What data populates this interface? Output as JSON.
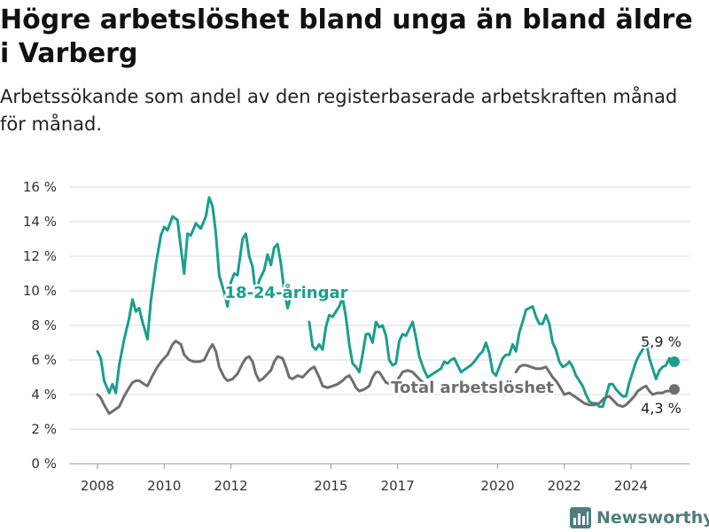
{
  "header": {
    "title": "Högre arbetslöshet bland unga än bland äldre i Varberg",
    "subtitle": "Arbetssökande som andel av den registerbaserade arbetskraften månad för månad."
  },
  "brand": {
    "name": "Newsworthy",
    "icon": "bar-chart-logo-icon"
  },
  "colors": {
    "youth": "#1a9e8f",
    "total": "#6e6e72",
    "grid": "#d9d9d9",
    "text": "#333333"
  },
  "chart_data": {
    "type": "line",
    "x_unit": "year",
    "y_unit": "%",
    "ylim": [
      0,
      16
    ],
    "xlim": [
      2007.5,
      2025.5
    ],
    "y_ticks": [
      0,
      2,
      4,
      6,
      8,
      10,
      12,
      14,
      16
    ],
    "y_tick_labels": [
      "0 %",
      "2 %",
      "4 %",
      "6 %",
      "8 %",
      "10 %",
      "12 %",
      "14 %",
      "16 %"
    ],
    "x_ticks": [
      2008,
      2010,
      2012,
      2015,
      2017,
      2020,
      2022,
      2024
    ],
    "x_tick_labels": [
      "2008",
      "2010",
      "2012",
      "2015",
      "2017",
      "2020",
      "2022",
      "2024"
    ],
    "grid": "horizontal",
    "series": [
      {
        "name": "18-24-åringar",
        "color": "#1a9e8f",
        "end_label": "5,9 %",
        "points": [
          [
            2008.0,
            6.5
          ],
          [
            2008.1,
            6.1
          ],
          [
            2008.2,
            4.8
          ],
          [
            2008.35,
            4.1
          ],
          [
            2008.45,
            4.6
          ],
          [
            2008.55,
            4.1
          ],
          [
            2008.65,
            5.7
          ],
          [
            2008.8,
            7.2
          ],
          [
            2008.95,
            8.4
          ],
          [
            2009.05,
            9.5
          ],
          [
            2009.15,
            8.8
          ],
          [
            2009.25,
            9.0
          ],
          [
            2009.35,
            8.2
          ],
          [
            2009.5,
            7.2
          ],
          [
            2009.6,
            9.4
          ],
          [
            2009.75,
            11.5
          ],
          [
            2009.9,
            13.2
          ],
          [
            2010.0,
            13.7
          ],
          [
            2010.1,
            13.5
          ],
          [
            2010.25,
            14.3
          ],
          [
            2010.4,
            14.1
          ],
          [
            2010.5,
            12.5
          ],
          [
            2010.6,
            11.0
          ],
          [
            2010.7,
            13.3
          ],
          [
            2010.8,
            13.2
          ],
          [
            2010.95,
            13.9
          ],
          [
            2011.1,
            13.6
          ],
          [
            2011.25,
            14.3
          ],
          [
            2011.35,
            15.4
          ],
          [
            2011.45,
            14.9
          ],
          [
            2011.55,
            13.3
          ],
          [
            2011.65,
            10.9
          ],
          [
            2011.8,
            9.9
          ],
          [
            2011.9,
            9.1
          ],
          [
            2012.0,
            10.5
          ],
          [
            2012.1,
            11.0
          ],
          [
            2012.2,
            10.9
          ],
          [
            2012.35,
            13.0
          ],
          [
            2012.45,
            13.3
          ],
          [
            2012.55,
            12.0
          ],
          [
            2012.65,
            11.4
          ],
          [
            2012.75,
            9.7
          ],
          [
            2012.85,
            10.6
          ],
          [
            2013.0,
            11.2
          ],
          [
            2013.1,
            12.1
          ],
          [
            2013.2,
            11.5
          ],
          [
            2013.3,
            12.5
          ],
          [
            2013.4,
            12.7
          ],
          [
            2013.5,
            11.6
          ],
          [
            2013.6,
            10.0
          ],
          [
            2013.7,
            9.0
          ],
          [
            2013.8,
            9.7
          ],
          [
            2014.35,
            8.2
          ],
          [
            2014.45,
            6.8
          ],
          [
            2014.55,
            6.6
          ],
          [
            2014.65,
            6.9
          ],
          [
            2014.75,
            6.6
          ],
          [
            2014.85,
            7.9
          ],
          [
            2014.95,
            8.6
          ],
          [
            2015.05,
            8.5
          ],
          [
            2015.15,
            8.8
          ],
          [
            2015.25,
            9.1
          ],
          [
            2015.35,
            9.6
          ],
          [
            2015.45,
            8.5
          ],
          [
            2015.55,
            6.9
          ],
          [
            2015.65,
            5.8
          ],
          [
            2015.75,
            5.6
          ],
          [
            2015.85,
            5.3
          ],
          [
            2015.95,
            6.3
          ],
          [
            2016.05,
            7.5
          ],
          [
            2016.15,
            7.5
          ],
          [
            2016.25,
            7.0
          ],
          [
            2016.35,
            8.2
          ],
          [
            2016.45,
            7.9
          ],
          [
            2016.55,
            8.0
          ],
          [
            2016.65,
            7.4
          ],
          [
            2016.75,
            6.0
          ],
          [
            2016.85,
            5.7
          ],
          [
            2016.95,
            5.8
          ],
          [
            2017.05,
            7.1
          ],
          [
            2017.15,
            7.5
          ],
          [
            2017.25,
            7.4
          ],
          [
            2017.35,
            7.8
          ],
          [
            2017.45,
            8.2
          ],
          [
            2017.55,
            7.3
          ],
          [
            2017.65,
            6.2
          ],
          [
            2017.8,
            5.4
          ],
          [
            2017.9,
            5.0
          ],
          [
            2018.3,
            5.5
          ],
          [
            2018.4,
            5.9
          ],
          [
            2018.5,
            5.8
          ],
          [
            2018.6,
            6.0
          ],
          [
            2018.7,
            6.1
          ],
          [
            2018.8,
            5.7
          ],
          [
            2018.9,
            5.3
          ],
          [
            2019.2,
            5.7
          ],
          [
            2019.3,
            5.9
          ],
          [
            2019.45,
            6.3
          ],
          [
            2019.55,
            6.5
          ],
          [
            2019.65,
            7.0
          ],
          [
            2019.75,
            6.4
          ],
          [
            2019.85,
            5.3
          ],
          [
            2019.95,
            5.1
          ],
          [
            2020.05,
            5.6
          ],
          [
            2020.15,
            6.1
          ],
          [
            2020.25,
            6.3
          ],
          [
            2020.35,
            6.3
          ],
          [
            2020.45,
            6.9
          ],
          [
            2020.55,
            6.5
          ],
          [
            2020.65,
            7.6
          ],
          [
            2020.75,
            8.2
          ],
          [
            2020.85,
            8.9
          ],
          [
            2020.95,
            9.0
          ],
          [
            2021.05,
            9.1
          ],
          [
            2021.15,
            8.5
          ],
          [
            2021.25,
            8.1
          ],
          [
            2021.35,
            8.1
          ],
          [
            2021.45,
            8.6
          ],
          [
            2021.55,
            8.1
          ],
          [
            2021.65,
            7.0
          ],
          [
            2021.75,
            6.6
          ],
          [
            2021.85,
            5.9
          ],
          [
            2021.95,
            5.6
          ],
          [
            2022.05,
            5.7
          ],
          [
            2022.15,
            5.9
          ],
          [
            2022.25,
            5.6
          ],
          [
            2022.35,
            5.1
          ],
          [
            2022.45,
            4.8
          ],
          [
            2022.55,
            4.5
          ],
          [
            2022.65,
            4.0
          ],
          [
            2022.75,
            3.6
          ],
          [
            2022.85,
            3.5
          ],
          [
            2022.95,
            3.5
          ],
          [
            2023.05,
            3.3
          ],
          [
            2023.15,
            3.3
          ],
          [
            2023.25,
            3.9
          ],
          [
            2023.35,
            4.6
          ],
          [
            2023.45,
            4.6
          ],
          [
            2023.55,
            4.3
          ],
          [
            2023.65,
            4.1
          ],
          [
            2023.75,
            3.9
          ],
          [
            2023.85,
            3.9
          ],
          [
            2023.95,
            4.7
          ],
          [
            2024.05,
            5.3
          ],
          [
            2024.15,
            5.9
          ],
          [
            2024.25,
            6.3
          ],
          [
            2024.35,
            6.6
          ],
          [
            2024.45,
            7.1
          ],
          [
            2024.55,
            6.1
          ],
          [
            2024.65,
            5.5
          ],
          [
            2024.75,
            4.9
          ],
          [
            2024.85,
            5.4
          ],
          [
            2024.95,
            5.6
          ],
          [
            2025.05,
            5.7
          ],
          [
            2025.15,
            6.1
          ],
          [
            2025.3,
            5.9
          ]
        ]
      },
      {
        "name": "Total arbetslöshet",
        "color": "#6e6e72",
        "end_label": "4,3 %",
        "points": [
          [
            2008.0,
            4.0
          ],
          [
            2008.1,
            3.8
          ],
          [
            2008.2,
            3.4
          ],
          [
            2008.35,
            2.9
          ],
          [
            2008.5,
            3.1
          ],
          [
            2008.65,
            3.3
          ],
          [
            2008.8,
            3.9
          ],
          [
            2008.95,
            4.4
          ],
          [
            2009.05,
            4.7
          ],
          [
            2009.15,
            4.8
          ],
          [
            2009.25,
            4.8
          ],
          [
            2009.4,
            4.6
          ],
          [
            2009.5,
            4.5
          ],
          [
            2009.65,
            5.1
          ],
          [
            2009.8,
            5.6
          ],
          [
            2009.95,
            6.0
          ],
          [
            2010.1,
            6.3
          ],
          [
            2010.25,
            6.9
          ],
          [
            2010.35,
            7.1
          ],
          [
            2010.5,
            6.9
          ],
          [
            2010.6,
            6.3
          ],
          [
            2010.75,
            6.0
          ],
          [
            2010.9,
            5.9
          ],
          [
            2011.05,
            5.9
          ],
          [
            2011.2,
            6.0
          ],
          [
            2011.35,
            6.6
          ],
          [
            2011.45,
            6.9
          ],
          [
            2011.55,
            6.5
          ],
          [
            2011.65,
            5.6
          ],
          [
            2011.8,
            5.0
          ],
          [
            2011.9,
            4.8
          ],
          [
            2012.05,
            4.9
          ],
          [
            2012.2,
            5.2
          ],
          [
            2012.35,
            5.8
          ],
          [
            2012.45,
            6.1
          ],
          [
            2012.55,
            6.2
          ],
          [
            2012.65,
            5.9
          ],
          [
            2012.75,
            5.2
          ],
          [
            2012.85,
            4.8
          ],
          [
            2012.95,
            4.9
          ],
          [
            2013.05,
            5.1
          ],
          [
            2013.2,
            5.4
          ],
          [
            2013.3,
            5.9
          ],
          [
            2013.4,
            6.2
          ],
          [
            2013.55,
            6.1
          ],
          [
            2013.65,
            5.6
          ],
          [
            2013.75,
            5.0
          ],
          [
            2013.85,
            4.9
          ],
          [
            2014.0,
            5.1
          ],
          [
            2014.15,
            5.0
          ],
          [
            2014.3,
            5.3
          ],
          [
            2014.4,
            5.5
          ],
          [
            2014.5,
            5.6
          ],
          [
            2014.65,
            5.0
          ],
          [
            2014.75,
            4.5
          ],
          [
            2014.9,
            4.4
          ],
          [
            2015.05,
            4.5
          ],
          [
            2015.2,
            4.6
          ],
          [
            2015.35,
            4.8
          ],
          [
            2015.45,
            5.0
          ],
          [
            2015.55,
            5.1
          ],
          [
            2015.65,
            4.8
          ],
          [
            2015.75,
            4.4
          ],
          [
            2015.85,
            4.2
          ],
          [
            2016.0,
            4.3
          ],
          [
            2016.15,
            4.5
          ],
          [
            2016.25,
            5.0
          ],
          [
            2016.35,
            5.3
          ],
          [
            2016.45,
            5.3
          ],
          [
            2016.55,
            5.0
          ],
          [
            2016.65,
            4.7
          ],
          [
            2016.8,
            4.6
          ],
          [
            2016.95,
            4.7
          ],
          [
            2017.05,
            5.0
          ],
          [
            2017.15,
            5.3
          ],
          [
            2017.3,
            5.4
          ],
          [
            2017.45,
            5.3
          ],
          [
            2017.55,
            5.1
          ],
          [
            2017.7,
            4.8
          ],
          [
            2017.85,
            4.6
          ],
          [
            2020.55,
            5.3
          ],
          [
            2020.65,
            5.6
          ],
          [
            2020.75,
            5.7
          ],
          [
            2020.85,
            5.7
          ],
          [
            2021.0,
            5.6
          ],
          [
            2021.15,
            5.5
          ],
          [
            2021.3,
            5.5
          ],
          [
            2021.45,
            5.6
          ],
          [
            2021.55,
            5.3
          ],
          [
            2021.65,
            5.0
          ],
          [
            2021.75,
            4.8
          ],
          [
            2021.85,
            4.5
          ],
          [
            2022.0,
            4.0
          ],
          [
            2022.15,
            4.1
          ],
          [
            2022.3,
            3.9
          ],
          [
            2022.45,
            3.7
          ],
          [
            2022.6,
            3.5
          ],
          [
            2022.75,
            3.4
          ],
          [
            2022.9,
            3.4
          ],
          [
            2023.05,
            3.5
          ],
          [
            2023.2,
            3.8
          ],
          [
            2023.35,
            3.9
          ],
          [
            2023.5,
            3.6
          ],
          [
            2023.6,
            3.4
          ],
          [
            2023.75,
            3.3
          ],
          [
            2023.85,
            3.4
          ],
          [
            2024.0,
            3.7
          ],
          [
            2024.1,
            3.9
          ],
          [
            2024.2,
            4.2
          ],
          [
            2024.35,
            4.4
          ],
          [
            2024.45,
            4.5
          ],
          [
            2024.55,
            4.2
          ],
          [
            2024.65,
            4.0
          ],
          [
            2024.8,
            4.1
          ],
          [
            2024.95,
            4.1
          ],
          [
            2025.05,
            4.2
          ],
          [
            2025.15,
            4.2
          ],
          [
            2025.3,
            4.3
          ]
        ]
      }
    ]
  }
}
